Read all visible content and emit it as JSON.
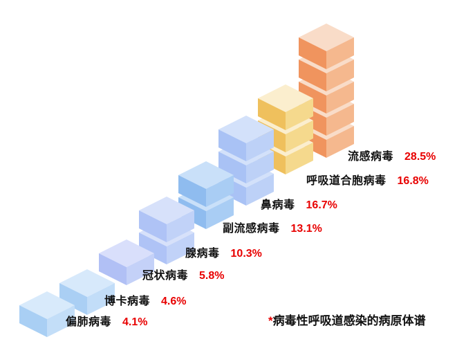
{
  "chart_data": {
    "type": "bar",
    "style": "isometric-cube-stack",
    "title": "",
    "unit": "%",
    "legend": "none",
    "axes": "none",
    "items": [
      {
        "name": "偏肺病毒",
        "value": 4.1,
        "pct": "4.1%",
        "cubes": 1,
        "colors": {
          "top": "#D8EAFB",
          "left": "#A9CFF4",
          "right": "#C3DEF8"
        }
      },
      {
        "name": "博卡病毒",
        "value": 4.6,
        "pct": "4.6%",
        "cubes": 1,
        "colors": {
          "top": "#D7E9FB",
          "left": "#AACFF4",
          "right": "#C2DDF8"
        }
      },
      {
        "name": "冠状病毒",
        "value": 5.8,
        "pct": "5.8%",
        "cubes": 1,
        "colors": {
          "top": "#D9DFFB",
          "left": "#B1C0F5",
          "right": "#C4D1F8"
        }
      },
      {
        "name": "腺病毒",
        "value": 10.3,
        "pct": "10.3%",
        "cubes": 2,
        "colors": {
          "top": "#D7E1FA",
          "left": "#AFC3F6",
          "right": "#C1D2F8"
        }
      },
      {
        "name": "副流感病毒",
        "value": 13.1,
        "pct": "13.1%",
        "cubes": 2,
        "colors": {
          "top": "#C9E0F9",
          "left": "#8FBCEF",
          "right": "#A9CDF4"
        }
      },
      {
        "name": "鼻病毒",
        "value": 16.7,
        "pct": "16.7%",
        "cubes": 3,
        "colors": {
          "top": "#D3E1FA",
          "left": "#A9C2F5",
          "right": "#BDD1F7"
        }
      },
      {
        "name": "呼吸道合胞病毒",
        "value": 16.8,
        "pct": "16.8%",
        "cubes": 3,
        "colors": {
          "top": "#FBEECE",
          "left": "#EFC05D",
          "right": "#F5D98D"
        }
      },
      {
        "name": "流感病毒",
        "value": 28.5,
        "pct": "28.5%",
        "cubes": 5,
        "colors": {
          "top": "#F9DCC8",
          "left": "#F0945E",
          "right": "#F5B88E"
        }
      }
    ],
    "footnote_marker": "*",
    "footnote_text": "病毒性呼吸道感染的病原体谱",
    "value_color": "#E80000",
    "name_color": "#111111",
    "background_color": "#FFFFFF"
  }
}
